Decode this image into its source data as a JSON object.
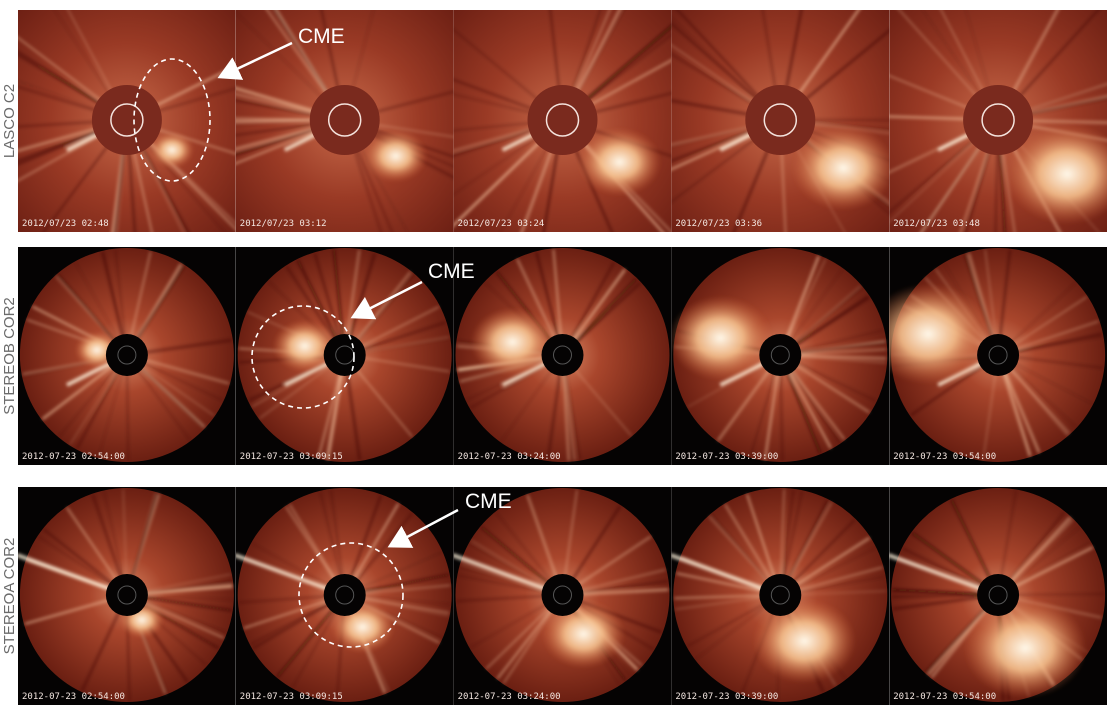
{
  "rows": [
    {
      "label": "LASCO C2",
      "timestamps": [
        "2012/07/23 02:48",
        "2012/07/23 03:12",
        "2012/07/23 03:24",
        "2012/07/23 03:36",
        "2012/07/23 03:48"
      ]
    },
    {
      "label": "STEREOB COR2",
      "timestamps": [
        "2012-07-23 02:54:00",
        "2012-07-23 03:09:15",
        "2012-07-23 03:24:00",
        "2012-07-23 03:39:00",
        "2012-07-23 03:54:00"
      ]
    },
    {
      "label": "STEREOA COR2",
      "timestamps": [
        "2012-07-23 02:54:00",
        "2012-07-23 03:09:15",
        "2012-07-23 03:24:00",
        "2012-07-23 03:39:00",
        "2012-07-23 03:54:00"
      ]
    }
  ],
  "annotations": [
    {
      "label": "CME"
    },
    {
      "label": "CME"
    },
    {
      "label": "CME"
    }
  ]
}
